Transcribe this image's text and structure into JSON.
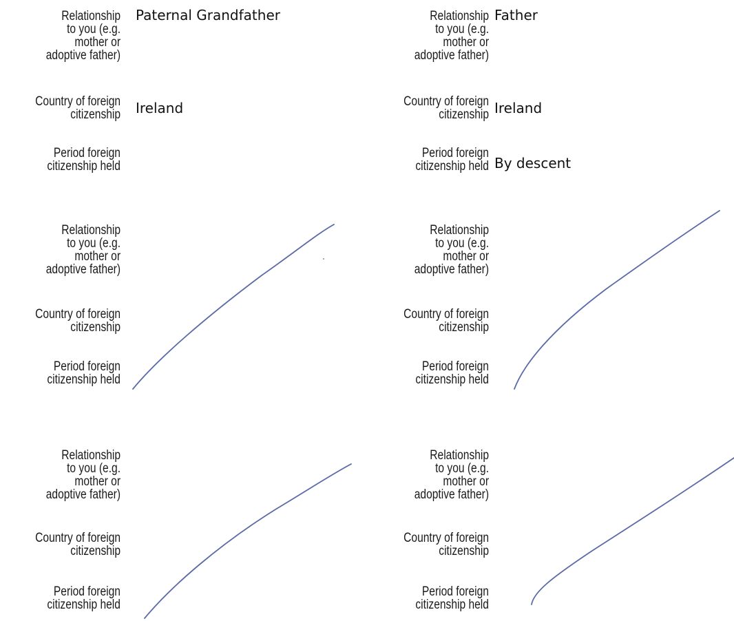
{
  "labels": {
    "relationship_l1": "Relationship",
    "relationship_l2": "to you (e.g.",
    "relationship_l3": "mother or",
    "relationship_l4": "adoptive father)",
    "country_l1": "Country of foreign",
    "country_l2": "citizenship",
    "period_l1": "Period foreign",
    "period_l2": "citizenship held"
  },
  "entries": [
    {
      "relationship": "Paternal Grandfather",
      "country": "Ireland",
      "period": ""
    },
    {
      "relationship": "Father",
      "country": "Ireland",
      "period": "By descent"
    },
    {
      "relationship": "",
      "country": "",
      "period": ""
    },
    {
      "relationship": "",
      "country": "",
      "period": ""
    },
    {
      "relationship": "",
      "country": "",
      "period": ""
    },
    {
      "relationship": "",
      "country": "",
      "period": ""
    }
  ],
  "colors": {
    "pen_stroke": "#5a6aa8"
  }
}
